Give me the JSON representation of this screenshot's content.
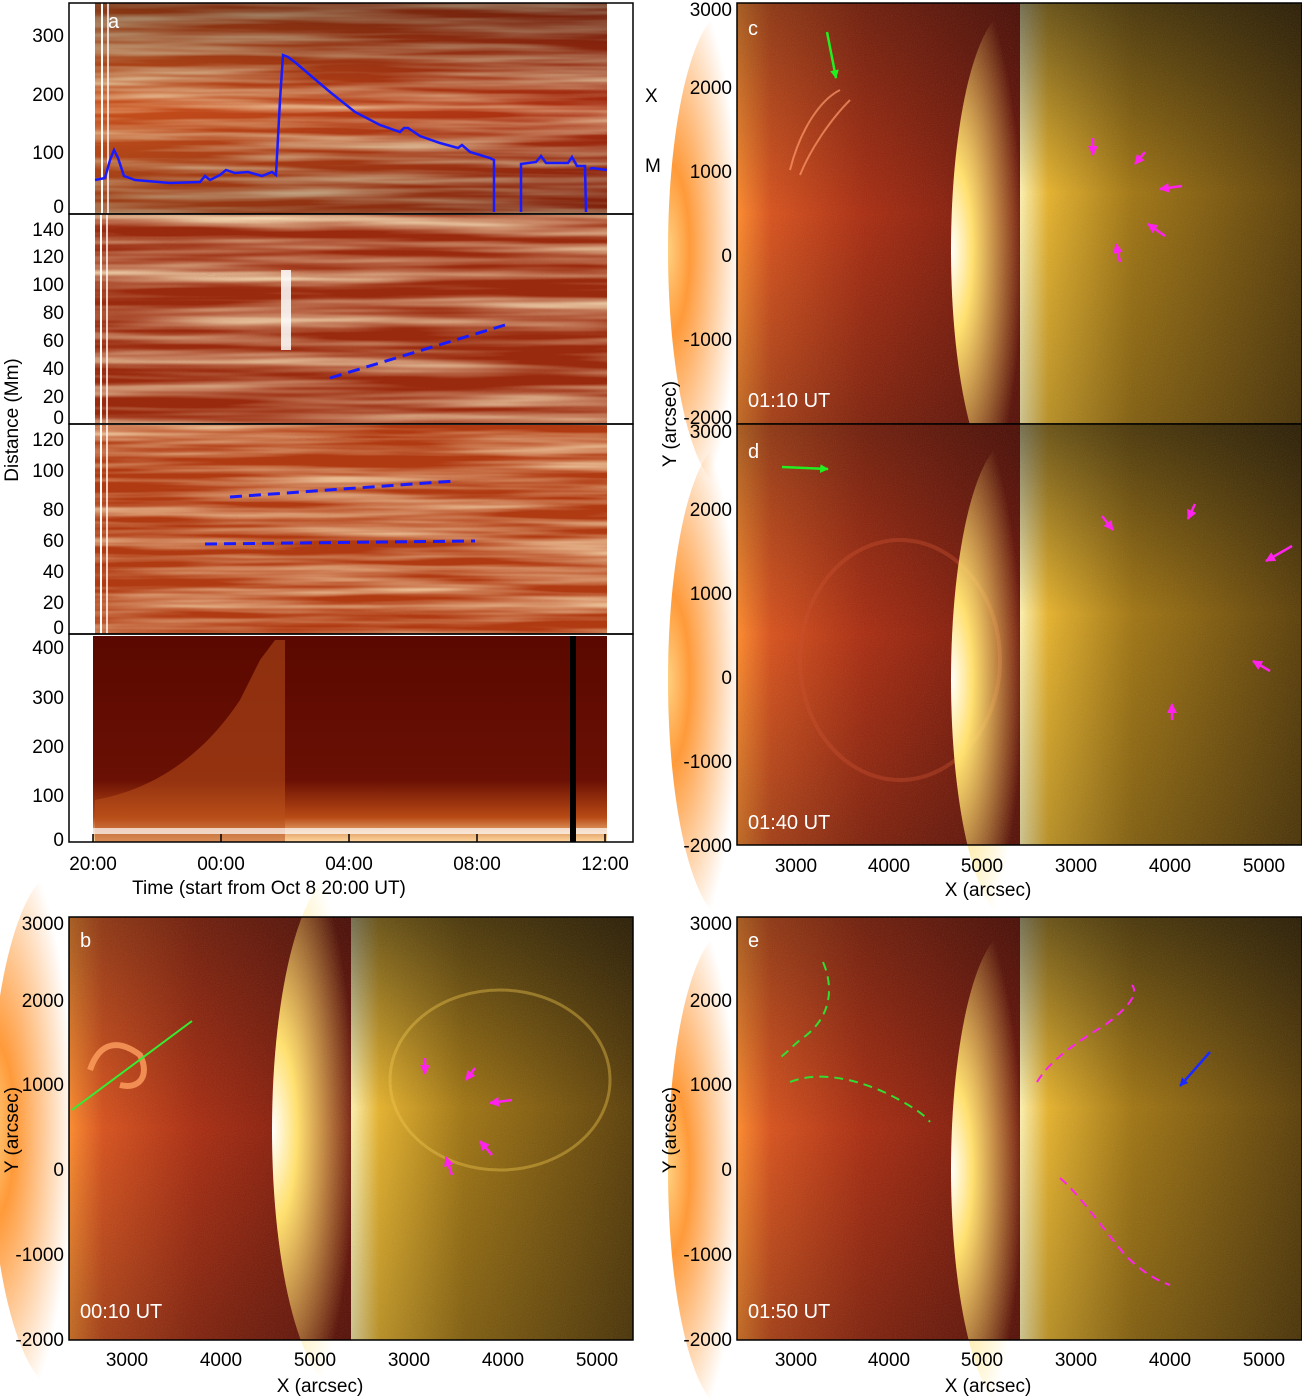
{
  "figure": {
    "panel_a": {
      "label": "a",
      "ylabel": "Distance (Mm)",
      "xlabel": "Time (start from Oct 8 20:00 UT)",
      "xticks": [
        "20:00",
        "00:00",
        "04:00",
        "08:00",
        "12:00"
      ],
      "goes_class_labels": [
        "X",
        "M"
      ],
      "subpanels": [
        {
          "yticks": [
            "0",
            "100",
            "200",
            "300"
          ],
          "ylim": [
            0,
            350
          ]
        },
        {
          "yticks": [
            "0",
            "20",
            "40",
            "60",
            "80",
            "100",
            "120",
            "140"
          ],
          "ylim": [
            0,
            150
          ]
        },
        {
          "yticks": [
            "0",
            "20",
            "40",
            "60",
            "80",
            "100",
            "120"
          ],
          "ylim": [
            0,
            135
          ]
        },
        {
          "yticks": [
            "0",
            "100",
            "200",
            "300",
            "400"
          ],
          "ylim": [
            0,
            420
          ]
        }
      ]
    },
    "panel_b": {
      "label": "b",
      "time": "00:10 UT"
    },
    "panel_c": {
      "label": "c",
      "time": "01:10 UT"
    },
    "panel_d": {
      "label": "d",
      "time": "01:40 UT"
    },
    "panel_e": {
      "label": "e",
      "time": "01:50 UT"
    },
    "image_axes": {
      "xlabel": "X (arcsec)",
      "ylabel": "Y (arcsec)",
      "xticks": [
        "3000",
        "4000",
        "5000"
      ],
      "yticks": [
        "-2000",
        "-1000",
        "0",
        "1000",
        "2000",
        "3000"
      ]
    },
    "colors": {
      "curve": "#1a1aff",
      "green_arrow": "#22ee22",
      "magenta_arrow": "#ff22ee",
      "blue_arrow": "#1a2aff"
    }
  }
}
